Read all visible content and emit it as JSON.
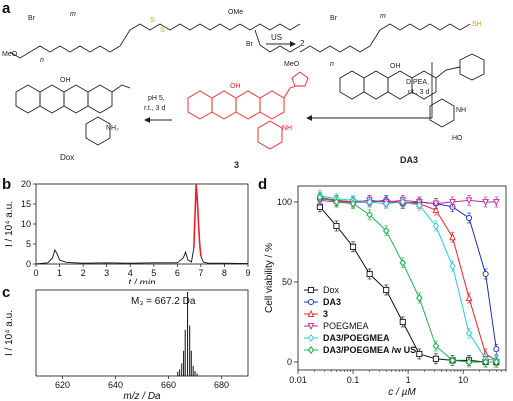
{
  "panels": {
    "a": "a",
    "b": "b",
    "c": "c",
    "d": "d"
  },
  "scheme": {
    "us_label": "US",
    "us_multiplier": "2",
    "dipea_label": "DIPEA,",
    "dipea_cond": "r.t., 3 d",
    "ph_label": "pH 5,",
    "ph_cond": "r.t., 3 d",
    "compound3_label": "3",
    "da3_label": "DA3",
    "dox_label": "Dox",
    "meo_label": "MeO",
    "ome_label": "OMe",
    "br_label": "Br",
    "m_label": "m",
    "n_label": "n",
    "S_label": "S",
    "SH_label": "SH",
    "OH_label": "OH",
    "O_label": "O",
    "NH2_label": "NH₂",
    "NH_label": "NH",
    "HO_label": "HO"
  },
  "chart_data": [
    {
      "panel": "b",
      "type": "line",
      "xlabel": "t / min",
      "ylabel": "I / 10⁴ a.u.",
      "xlim": [
        0,
        9
      ],
      "ylim": [
        0,
        20
      ],
      "xticks": [
        0,
        1,
        2,
        3,
        4,
        5,
        6,
        7,
        8,
        9
      ],
      "yticks": [
        0,
        5,
        10,
        15,
        20
      ],
      "series": [
        {
          "x": [
            0,
            0.5,
            0.7,
            0.8,
            0.9,
            1.0,
            1.3,
            2,
            3,
            4,
            5,
            6,
            6.25,
            6.35,
            6.45,
            6.6,
            6.7,
            6.75,
            6.8,
            6.85,
            6.9,
            6.95,
            7.0,
            7.1,
            7.3,
            8,
            9
          ],
          "y": [
            0,
            0.3,
            1.5,
            3.5,
            2.5,
            1.0,
            0.4,
            0.2,
            0.3,
            0.2,
            0.3,
            0.3,
            1.5,
            3.0,
            1.0,
            0.5,
            4,
            12,
            20,
            16,
            10,
            5,
            2,
            0.5,
            0.2,
            0.2,
            0.1
          ]
        }
      ],
      "highlight_color": "#e8222a",
      "line_color": "#111111"
    },
    {
      "panel": "c",
      "type": "bar",
      "xlabel": "m/z / Da",
      "ylabel": "I / 10⁴ a.u.",
      "annotation": "M₃ = 667.2 Da",
      "xlim": [
        610,
        690
      ],
      "xticks": [
        620,
        640,
        660,
        680
      ],
      "series": [
        {
          "x": [
            663.5,
            664.2,
            665.0,
            665.7,
            666.3,
            667.2,
            668.0,
            668.6,
            669.3,
            670.0,
            670.8
          ],
          "y": [
            0.05,
            0.08,
            0.15,
            0.3,
            0.55,
            1.0,
            0.6,
            0.3,
            0.12,
            0.06,
            0.03
          ]
        }
      ]
    },
    {
      "panel": "d",
      "type": "line",
      "xlabel": "c / µM",
      "ylabel": "Cell viability / %",
      "xscale": "log",
      "xlim": [
        0.01,
        60
      ],
      "ylim": [
        -5,
        110
      ],
      "xticks": [
        0.01,
        0.1,
        1,
        10
      ],
      "xtick_labels": [
        "0.01",
        "0.1",
        "1",
        "10"
      ],
      "yticks": [
        0,
        50,
        100
      ],
      "legend_position": "bottom-left",
      "series": [
        {
          "name": "Dox",
          "color": "#111111",
          "marker": "square",
          "x": [
            0.025,
            0.05,
            0.1,
            0.2,
            0.4,
            0.8,
            1.6,
            3.2,
            6.4,
            12.8,
            25.6,
            40
          ],
          "y": [
            97,
            85,
            72,
            55,
            45,
            25,
            5,
            2,
            1,
            1,
            0,
            0
          ]
        },
        {
          "name": "DA3",
          "color": "#1b2fb8",
          "marker": "circle",
          "x": [
            0.025,
            0.05,
            0.1,
            0.2,
            0.4,
            0.8,
            1.6,
            3.2,
            6.4,
            12.8,
            25.6,
            40
          ],
          "y": [
            102,
            101,
            100,
            100,
            101,
            99,
            100,
            99,
            97,
            90,
            55,
            8
          ]
        },
        {
          "name": "3",
          "color": "#e8222a",
          "marker": "triangle",
          "x": [
            0.025,
            0.05,
            0.1,
            0.2,
            0.4,
            0.8,
            1.6,
            3.2,
            6.4,
            12.8,
            25.6,
            40
          ],
          "y": [
            103,
            101,
            100,
            101,
            100,
            100,
            99,
            95,
            78,
            40,
            5,
            1
          ]
        },
        {
          "name": "POEGMEA",
          "color": "#c2249c",
          "marker": "triangle-down",
          "x": [
            0.025,
            0.05,
            0.1,
            0.2,
            0.4,
            0.8,
            1.6,
            3.2,
            6.4,
            12.8,
            25.6,
            40
          ],
          "y": [
            101,
            100,
            100,
            101,
            100,
            101,
            100,
            99,
            100,
            101,
            100,
            100
          ]
        },
        {
          "name": "DA3/POEGMEA",
          "color": "#26c8d8",
          "marker": "diamond-open",
          "x": [
            0.025,
            0.05,
            0.1,
            0.2,
            0.4,
            0.8,
            1.6,
            3.2,
            6.4,
            12.8,
            25.6,
            40
          ],
          "y": [
            104,
            102,
            101,
            100,
            99,
            100,
            98,
            85,
            60,
            18,
            2,
            1
          ]
        },
        {
          "name": "DA3/POEGMEA /w US",
          "color": "#21b34a",
          "marker": "diamond",
          "x": [
            0.025,
            0.05,
            0.1,
            0.2,
            0.4,
            0.8,
            1.6,
            3.2,
            6.4,
            12.8,
            25.6,
            40
          ],
          "y": [
            103,
            100,
            99,
            92,
            82,
            62,
            40,
            10,
            1,
            0,
            0,
            0
          ]
        }
      ]
    }
  ]
}
